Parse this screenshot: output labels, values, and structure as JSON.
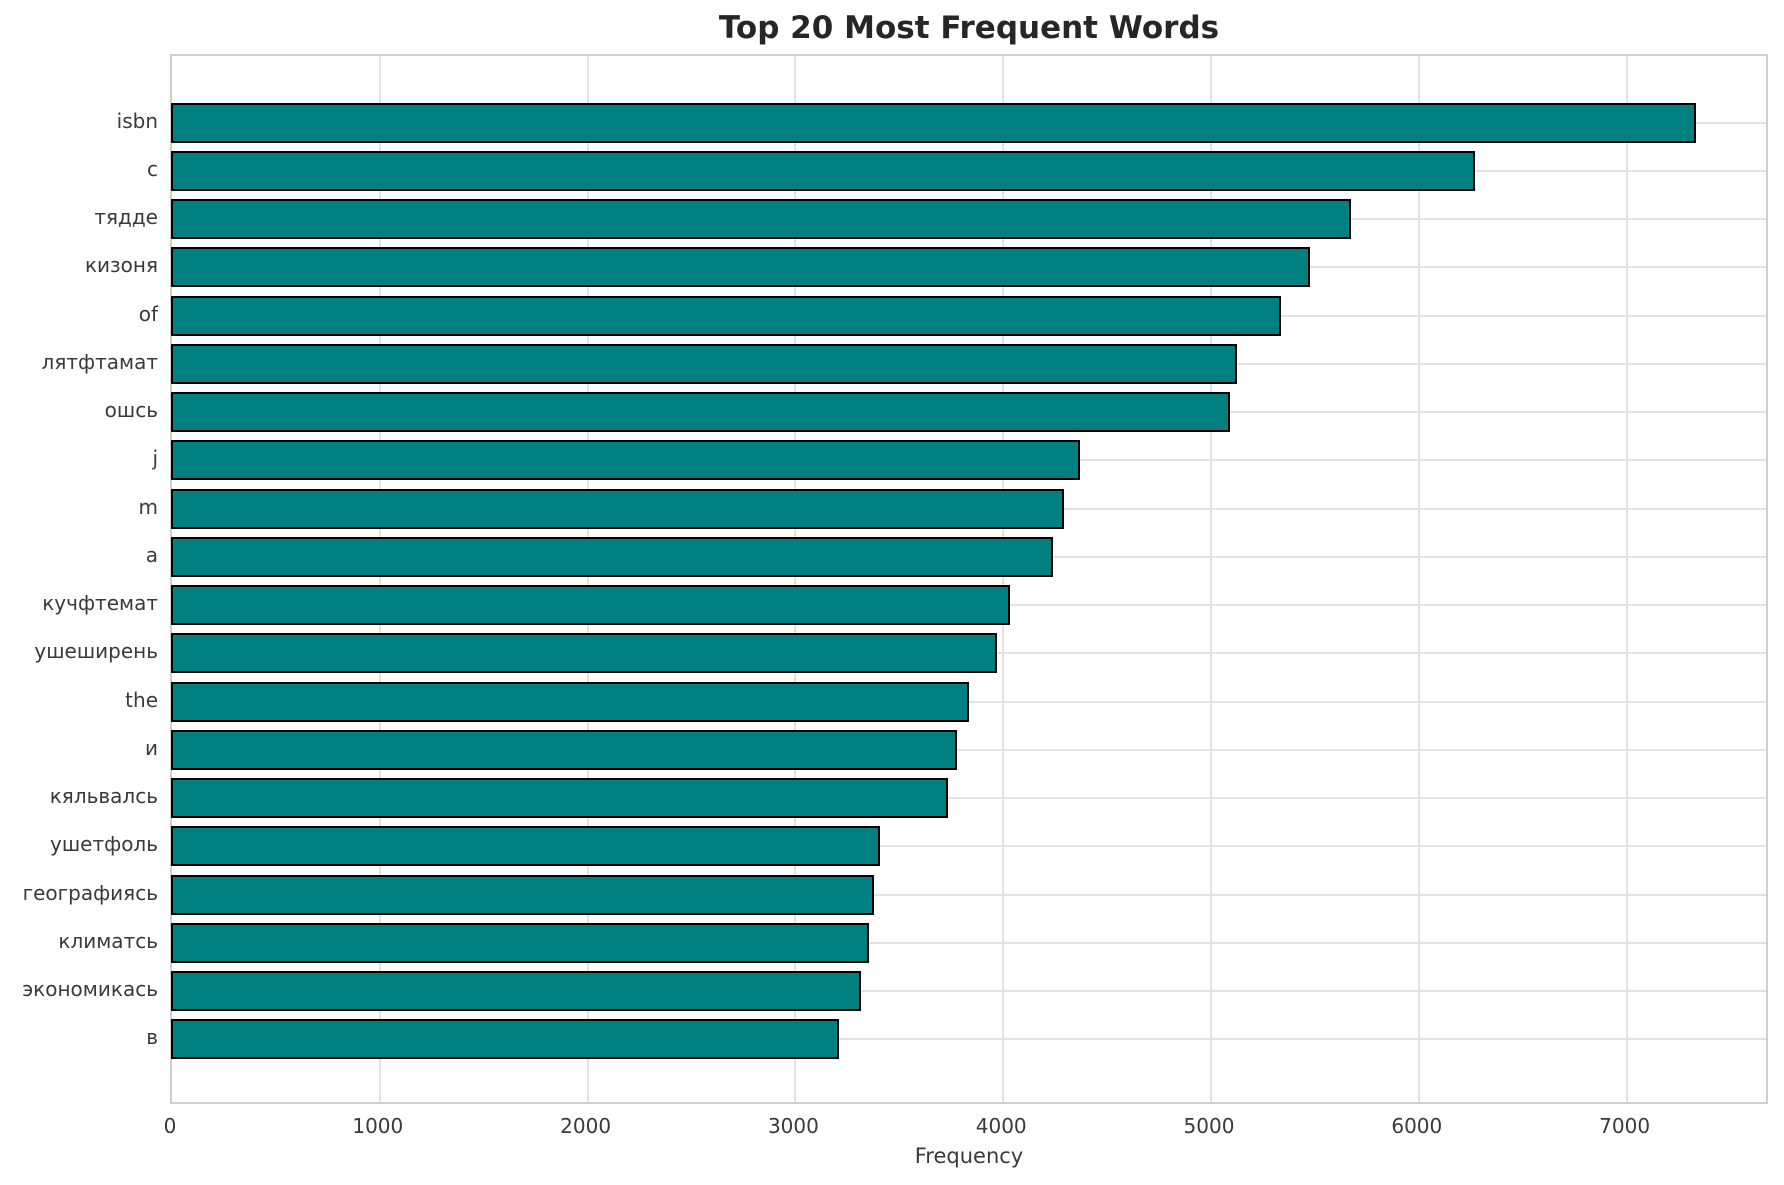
{
  "chart_data": {
    "type": "bar",
    "orientation": "horizontal",
    "title": "Top 20 Most Frequent Words",
    "xlabel": "Frequency",
    "ylabel": "",
    "categories": [
      "isbn",
      "c",
      "тядде",
      "кизоня",
      "of",
      "лятфтамат",
      "ошсь",
      "j",
      "m",
      "a",
      "кучфтемат",
      "ушеширень",
      "the",
      "и",
      "кяльвалсь",
      "ушетфоль",
      "географиясь",
      "климатсь",
      "экономикась",
      "в"
    ],
    "values": [
      7330,
      6265,
      5670,
      5470,
      5330,
      5120,
      5085,
      4365,
      4290,
      4235,
      4030,
      3965,
      3830,
      3775,
      3730,
      3400,
      3375,
      3350,
      3310,
      3205
    ],
    "xticks": [
      0,
      1000,
      2000,
      3000,
      4000,
      5000,
      6000,
      7000
    ],
    "xlim": [
      0,
      7690
    ],
    "grid": true,
    "legend": null,
    "bar_color": "#008080",
    "bar_edge_color": "#000000",
    "grid_color": "#e2e2e2",
    "spine_color": "#d0d0d0",
    "tick_color": "#3a3a3a",
    "title_color": "#262626"
  }
}
